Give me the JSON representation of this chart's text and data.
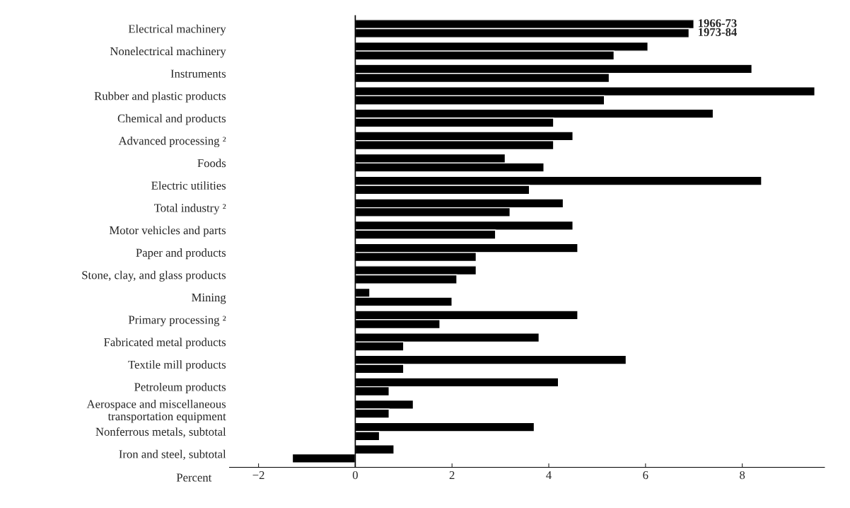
{
  "chart_data": {
    "type": "bar",
    "orientation": "horizontal",
    "xlabel": "Percent",
    "categories": [
      "Electrical machinery",
      "Nonelectrical machinery",
      "Instruments",
      "Rubber and plastic products",
      "Chemical and products",
      "Advanced processing ²",
      "Foods",
      "Electric utilities",
      "Total industry ²",
      "Motor vehicles and parts",
      "Paper and products",
      "Stone, clay, and glass products",
      "Mining",
      "Primary processing ²",
      "Fabricated metal products",
      "Textile mill products",
      "Petroleum products",
      "Aerospace and miscellaneous\ntransportation equipment",
      "Nonferrous metals, subtotal",
      "Iron and steel, subtotal"
    ],
    "series": [
      {
        "name": "1966-73",
        "color": "#000000",
        "values": [
          7.0,
          6.05,
          8.2,
          9.5,
          7.4,
          4.5,
          3.1,
          8.4,
          4.3,
          4.5,
          4.6,
          2.5,
          0.3,
          4.6,
          3.8,
          5.6,
          4.2,
          1.2,
          3.7,
          0.8
        ]
      },
      {
        "name": "1973-84",
        "color": "#000000",
        "values": [
          6.9,
          5.35,
          5.25,
          5.15,
          4.1,
          4.1,
          3.9,
          3.6,
          3.2,
          2.9,
          2.5,
          2.1,
          2.0,
          1.75,
          1.0,
          1.0,
          0.7,
          0.7,
          0.5,
          -1.3
        ]
      }
    ],
    "xlim": [
      -2.6,
      9.7
    ],
    "xticks": [
      {
        "value": -2,
        "label": "−2"
      },
      0,
      2,
      4,
      6,
      8
    ],
    "ref_lines": [
      {
        "axis": "x",
        "value": 0,
        "color": "#000000",
        "line_style": "solid"
      }
    ],
    "grid": false,
    "legend": false
  }
}
